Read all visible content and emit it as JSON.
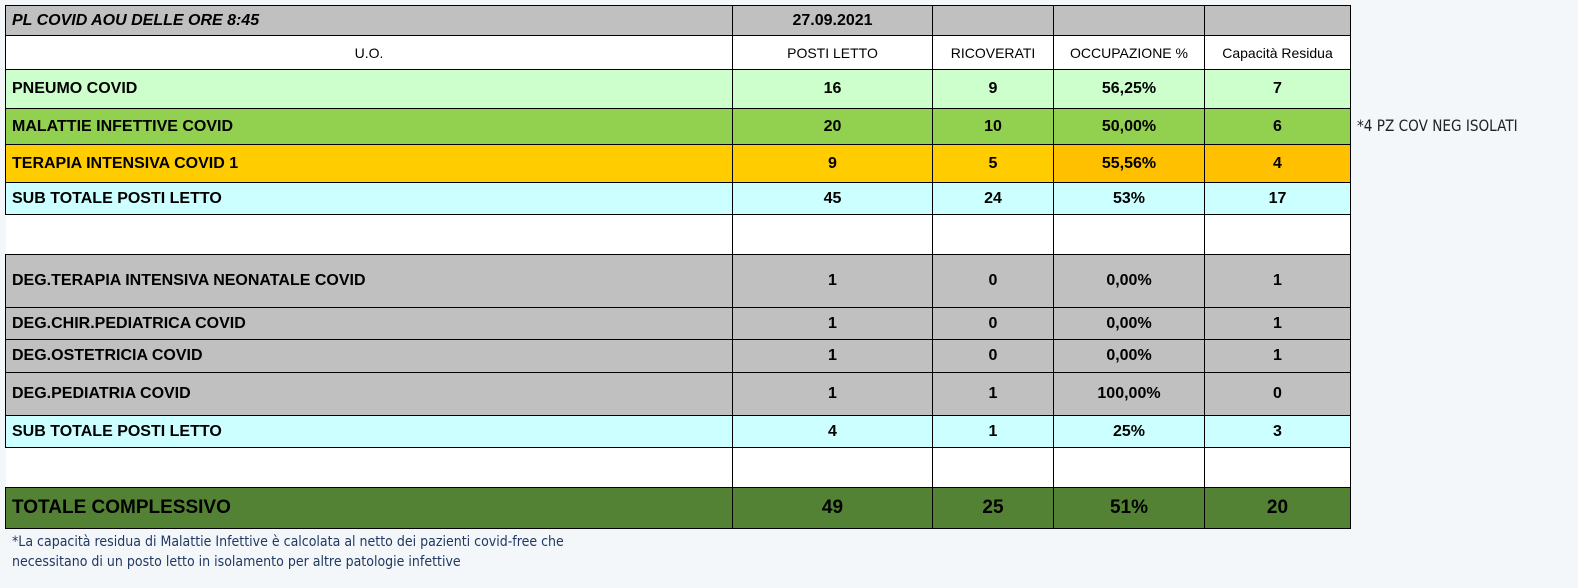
{
  "title": "PL COVID AOU DELLE ORE  8:45",
  "date": "27.09.2021",
  "headers": [
    "U.O.",
    "POSTI LETTO",
    "RICOVERATI",
    "OCCUPAZIONE %",
    "Capacità Residua"
  ],
  "rows": [
    {
      "uo": "PNEUMO COVID",
      "posti": "16",
      "ricoverati": "9",
      "occupazione": "56,25%",
      "capacita": "7"
    },
    {
      "uo": "MALATTIE INFETTIVE COVID",
      "posti": "20",
      "ricoverati": "10",
      "occupazione": "50,00%",
      "capacita": "6"
    },
    {
      "uo": "TERAPIA INTENSIVA COVID 1",
      "posti": "9",
      "ricoverati": "5",
      "occupazione": "55,56%",
      "capacita": "4"
    },
    {
      "uo": "SUB TOTALE POSTI LETTO",
      "posti": "45",
      "ricoverati": "24",
      "occupazione": "53%",
      "capacita": "17"
    },
    {
      "uo": "DEG.TERAPIA INTENSIVA NEONATALE COVID",
      "posti": "1",
      "ricoverati": "0",
      "occupazione": "0,00%",
      "capacita": "1"
    },
    {
      "uo": "DEG.CHIR.PEDIATRICA COVID",
      "posti": "1",
      "ricoverati": "0",
      "occupazione": "0,00%",
      "capacita": "1"
    },
    {
      "uo": "DEG.OSTETRICIA COVID",
      "posti": "1",
      "ricoverati": "0",
      "occupazione": "0,00%",
      "capacita": "1"
    },
    {
      "uo": "DEG.PEDIATRIA COVID",
      "posti": "1",
      "ricoverati": "1",
      "occupazione": "100,00%",
      "capacita": "0"
    },
    {
      "uo": "SUB TOTALE POSTI LETTO",
      "posti": "4",
      "ricoverati": "1",
      "occupazione": "25%",
      "capacita": "3"
    },
    {
      "uo": "TOTALE  COMPLESSIVO",
      "posti": "49",
      "ricoverati": "25",
      "occupazione": "51%",
      "capacita": "20"
    }
  ],
  "side_note": "*4 PZ COV NEG ISOLATI",
  "footnote": [
    "*La capacità residua di Malattie Infettive è calcolata al netto dei pazienti covid-free che",
    "necessitano di un posto letto in isolamento per altre patologie infettive"
  ],
  "colors": {
    "pneumo": "#ccffcc",
    "malattie": "#92d050",
    "terapia": "#ffcc00",
    "subtotale": "#ccffff",
    "deg": "#c0c0c0",
    "totale": "#548235"
  }
}
